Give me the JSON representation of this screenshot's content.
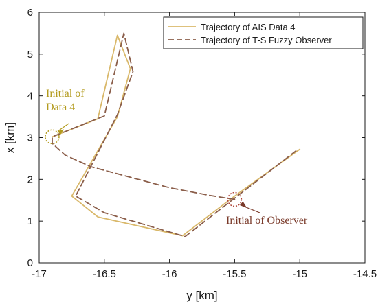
{
  "chart_data": {
    "type": "line",
    "title": "",
    "xlabel": "y [km]",
    "ylabel": "x [km]",
    "xlim": [
      -17,
      -14.5
    ],
    "ylim": [
      0,
      6
    ],
    "xticks": [
      -17,
      -16.5,
      -16,
      -15.5,
      -15,
      -14.5
    ],
    "xtick_labels": [
      "-17",
      "-16.5",
      "-16",
      "-15.5",
      "-15",
      "-14.5"
    ],
    "yticks": [
      0,
      1,
      2,
      3,
      4,
      5,
      6
    ],
    "ytick_labels": [
      "0",
      "1",
      "2",
      "3",
      "4",
      "5",
      "6"
    ],
    "grid": false,
    "legend_position": "top-right",
    "series": [
      {
        "name": "Trajectory of AIS Data 4",
        "style": "solid",
        "color": "#D9B86A",
        "x": [
          -16.9,
          -16.55,
          -16.4,
          -16.3,
          -16.4,
          -16.75,
          -16.55,
          -15.9,
          -15.5,
          -15.0
        ],
        "y": [
          3.02,
          3.45,
          5.45,
          4.65,
          3.5,
          1.6,
          1.1,
          0.65,
          1.6,
          2.72
        ]
      },
      {
        "name": "Trajectory of T-S Fuzzy Observer",
        "style": "dashed",
        "color": "#8B5E4A",
        "x": [
          -15.5,
          -15.7,
          -16.0,
          -16.3,
          -16.6,
          -16.8,
          -16.9,
          -16.9,
          -16.5,
          -16.35,
          -16.28,
          -16.4,
          -16.72,
          -16.5,
          -15.88,
          -15.5,
          -15.03
        ],
        "y": [
          1.52,
          1.62,
          1.8,
          2.05,
          2.3,
          2.58,
          2.86,
          3.02,
          3.52,
          5.5,
          4.58,
          3.55,
          1.6,
          1.2,
          0.63,
          1.55,
          2.68
        ]
      }
    ],
    "annotations": [
      {
        "text_lines": [
          "Initial of",
          "Data 4"
        ],
        "x": -16.9,
        "y": 3.02,
        "color": "#B39B1E",
        "marker_color": "#B39B1E"
      },
      {
        "text_lines": [
          "Initial of Observer"
        ],
        "x": -15.5,
        "y": 1.52,
        "color": "#7A3A2A",
        "marker_color": "#B0473A"
      }
    ]
  }
}
